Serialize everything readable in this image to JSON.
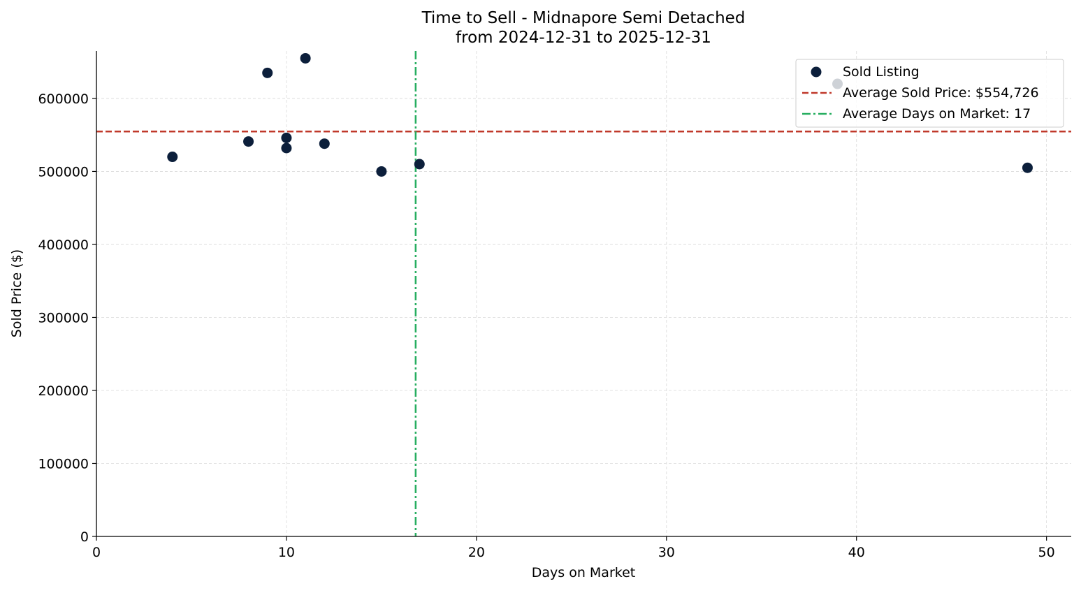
{
  "colors": {
    "point": "#0c1f3b",
    "avg_price_line": "#c0392b",
    "avg_days_line": "#27ae60",
    "grid": "#d9d9d9",
    "axis": "#000000"
  },
  "chart_data": {
    "type": "scatter",
    "title": "Time to Sell - Midnapore Semi Detached",
    "subtitle": "from 2024-12-31 to 2025-12-31",
    "xlabel": "Days on Market",
    "ylabel": "Sold Price ($)",
    "xlim": [
      0,
      51.3
    ],
    "ylim": [
      0,
      665000
    ],
    "x_ticks": [
      0,
      10,
      20,
      30,
      40,
      50
    ],
    "y_ticks": [
      0,
      100000,
      200000,
      300000,
      400000,
      500000,
      600000
    ],
    "grid": true,
    "legend_position": "top-right",
    "series": [
      {
        "name": "Sold Listing",
        "points": [
          {
            "x": 4,
            "y": 520000
          },
          {
            "x": 8,
            "y": 541000
          },
          {
            "x": 9,
            "y": 635000
          },
          {
            "x": 10,
            "y": 546000
          },
          {
            "x": 10,
            "y": 532000
          },
          {
            "x": 11,
            "y": 655000
          },
          {
            "x": 12,
            "y": 538000
          },
          {
            "x": 15,
            "y": 500000
          },
          {
            "x": 17,
            "y": 510000
          },
          {
            "x": 39,
            "y": 620000
          },
          {
            "x": 49,
            "y": 505000
          }
        ]
      }
    ],
    "reference_lines": [
      {
        "name": "Average Sold Price: $554,726",
        "axis": "y",
        "value": 554726,
        "style": "dashed"
      },
      {
        "name": "Average Days on Market: 17",
        "axis": "x",
        "value": 16.8,
        "style": "dashdot"
      }
    ]
  }
}
